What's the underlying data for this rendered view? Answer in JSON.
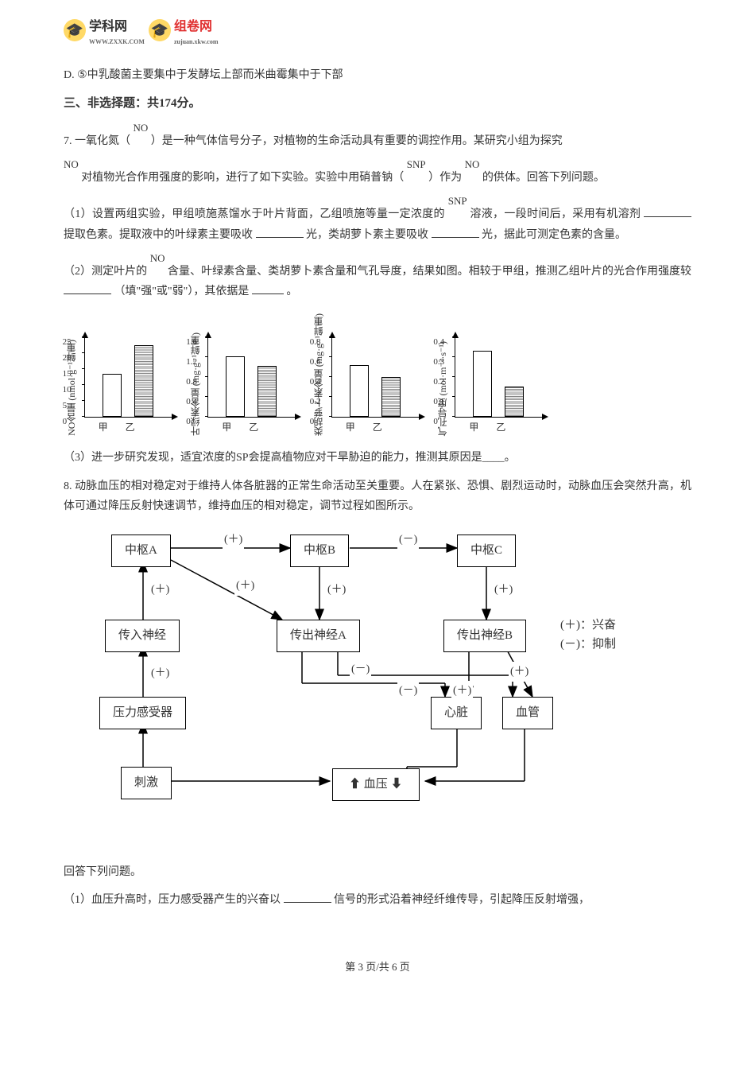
{
  "header": {
    "logo1_text": "学科网",
    "logo1_sub": "WWW.ZXXK.COM",
    "logo2_text": "组卷网",
    "logo2_sub": "zujuan.xkw.com"
  },
  "optionD": "D. ⑤中乳酸菌主要集中于发酵坛上部而米曲霉集中于下部",
  "section_title": "三、非选择题：共174分。",
  "q7": {
    "p1_a": "7. 一氧化氮（",
    "p1_sup1": "NO",
    "p1_b": "）是一种气体信号分子，对植物的生命活动具有重要的调控作用。某研究小组为探究",
    "p2_sup1": "NO",
    "p2_a": "对植物光合作用强度的影响，进行了如下实验。实验中用硝普钠（",
    "p2_sup2": "SNP",
    "p2_b": "）作为",
    "p2_sup3": "NO",
    "p2_c": "的供体。回答下列问题。",
    "p3_a": "（1）设置两组实验，甲组喷施蒸馏水于叶片背面，乙组喷施等量一定浓度的",
    "p3_sup1": "SNP",
    "p3_b": "溶液，一段时间后，采用有机溶剂",
    "p3_c": "提取色素。提取液中的叶绿素主要吸收",
    "p3_d": "光，类胡萝卜素主要吸收",
    "p3_e": "光，据此可测定色素的含量。",
    "p4_a": "（2）测定叶片的",
    "p4_sup1": "NO",
    "p4_b": "含量、叶绿素含量、类胡萝卜素含量和气孔导度，结果如图。相较于甲组，推测乙组叶片的光合作用强度较",
    "p4_c": "（填\"强\"或\"弱\"），其依据是",
    "p4_d": "。",
    "p5": "（3）进一步研究发现，适宜浓度的SP会提高植物应对干旱胁迫的能力，推测其原因是____。"
  },
  "charts": [
    {
      "ylabel": "NO含量\n(nmol·g⁻¹鲜重)",
      "ylim": [
        0,
        25
      ],
      "ytick_step": 5,
      "bars": [
        {
          "label": "甲",
          "value": 13.5,
          "style": "outline"
        },
        {
          "label": "乙",
          "value": 22.5,
          "style": "hatched"
        }
      ]
    },
    {
      "ylabel": "叶绿素含量\n(mg·g⁻¹鲜重)",
      "ylim": [
        0,
        1.6
      ],
      "ytick_step": 0.4,
      "bars": [
        {
          "label": "甲",
          "value": 1.22,
          "style": "outline"
        },
        {
          "label": "乙",
          "value": 1.02,
          "style": "hatched"
        }
      ]
    },
    {
      "ylabel": "类胡萝卜素含量\n(mg·g⁻¹鲜重)",
      "ylim": [
        0,
        0.8
      ],
      "ytick_step": 0.2,
      "bars": [
        {
          "label": "甲",
          "value": 0.52,
          "style": "outline"
        },
        {
          "label": "乙",
          "value": 0.4,
          "style": "hatched"
        }
      ]
    },
    {
      "ylabel": "气孔导度\n(mol·m⁻²·s⁻¹)",
      "ylim": [
        0,
        0.4
      ],
      "ytick_step": 0.1,
      "bars": [
        {
          "label": "甲",
          "value": 0.33,
          "style": "outline"
        },
        {
          "label": "乙",
          "value": 0.15,
          "style": "hatched"
        }
      ]
    }
  ],
  "q8": {
    "p1": "8. 动脉血压的相对稳定对于维持人体各脏器的正常生命活动至关重要。人在紧张、恐惧、剧烈运动时，动脉血压会突然升高，机体可通过降压反射快速调节，维持血压的相对稳定，调节过程如图所示。",
    "p2": "回答下列问题。",
    "p3_a": "（1）血压升高时，压力感受器产生的兴奋以",
    "p3_b": "信号的形式沿着神经纤维传导，引起降压反射增强，"
  },
  "flow": {
    "nodes": {
      "centerA": "中枢A",
      "centerB": "中枢B",
      "centerC": "中枢C",
      "afferent": "传入神经",
      "efferentA": "传出神经A",
      "efferentB": "传出神经B",
      "receptor": "压力感受器",
      "heart": "心脏",
      "vessel": "血管",
      "stimulus": "刺激",
      "bp": "血压"
    },
    "legend_excite": "(＋)：兴奋",
    "legend_inhibit": "(－)：抑制",
    "plus": "(＋)",
    "minus": "(－)"
  },
  "footer": "第 3 页/共 6 页"
}
